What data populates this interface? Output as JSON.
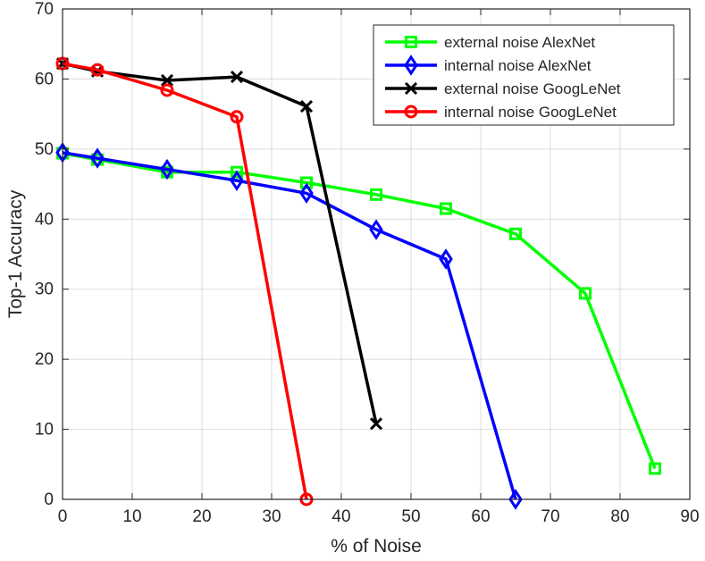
{
  "chart_data": {
    "type": "line",
    "title": "",
    "xlabel": "% of Noise",
    "ylabel": "Top-1 Accuracy",
    "xlim": [
      0,
      90
    ],
    "ylim": [
      0,
      70
    ],
    "xticks": [
      0,
      10,
      20,
      30,
      40,
      50,
      60,
      70,
      80,
      90
    ],
    "yticks": [
      0,
      10,
      20,
      30,
      40,
      50,
      60,
      70
    ],
    "grid": true,
    "legend_position": "top-right",
    "series": [
      {
        "name": "external noise AlexNet",
        "color": "#00ff00",
        "marker": "square",
        "x": [
          0,
          5,
          15,
          25,
          35,
          45,
          55,
          65,
          75,
          85
        ],
        "y": [
          49.4,
          48.5,
          46.7,
          46.7,
          45.2,
          43.5,
          41.5,
          37.9,
          29.4,
          4.4
        ]
      },
      {
        "name": "internal noise AlexNet",
        "color": "#0000ff",
        "marker": "diamond",
        "x": [
          0,
          5,
          15,
          25,
          35,
          45,
          55,
          65
        ],
        "y": [
          49.5,
          48.7,
          47.1,
          45.5,
          43.7,
          38.5,
          34.3,
          0.0
        ]
      },
      {
        "name": "external noise GoogLeNet",
        "color": "#000000",
        "marker": "x",
        "x": [
          0,
          5,
          15,
          25,
          35,
          45
        ],
        "y": [
          62.2,
          61.1,
          59.8,
          60.3,
          56.1,
          10.8
        ]
      },
      {
        "name": "internal noise GoogLeNet",
        "color": "#ff0000",
        "marker": "circle",
        "x": [
          0,
          5,
          15,
          25,
          35
        ],
        "y": [
          62.2,
          61.3,
          58.4,
          54.6,
          0.0
        ]
      }
    ]
  }
}
